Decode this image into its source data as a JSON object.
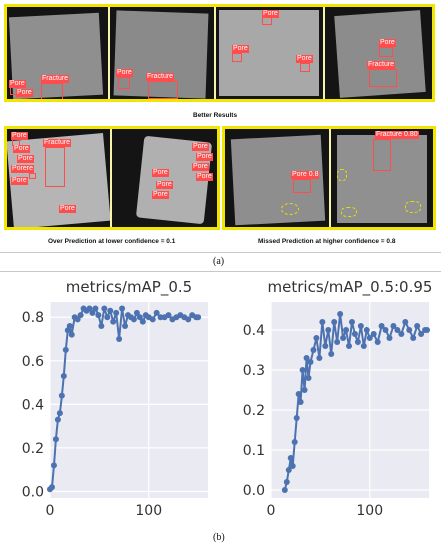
{
  "figure": {
    "panel_a": {
      "top_caption": "Better Results",
      "bottom_left_caption": "Over Prediction at lower confidence = 0.1",
      "bottom_right_caption": "Missed Prediction at higher confidence = 0.8",
      "label": "(a)",
      "detections": {
        "t1": [
          "Pore",
          "Pore",
          "Fracture"
        ],
        "t2": [
          "Pore",
          "Fracture"
        ],
        "t3": [
          "Pore",
          "Pore",
          "Pore"
        ],
        "t4": [
          "Pore",
          "Fracture"
        ],
        "t5": [
          "Pore",
          "Fracture",
          "Pore",
          "Pore",
          "Porere",
          "Pore",
          "Pore"
        ],
        "t6": [
          "Pore",
          "Pore",
          "Pore",
          "Pore",
          "Pore",
          "Pore",
          "Pore"
        ],
        "t7": [
          "Pore 0.8"
        ],
        "t8": [
          "Fracture 0.80"
        ]
      }
    },
    "panel_b": {
      "label": "(b)"
    }
  },
  "chart_data": [
    {
      "type": "line",
      "title": "metrics/mAP_0.5",
      "xlim": [
        0,
        160
      ],
      "ylim": [
        -0.03,
        0.87
      ],
      "xticks": [
        0,
        100
      ],
      "yticks": [
        0.0,
        0.2,
        0.4,
        0.6,
        0.8
      ],
      "xtick_labels": [
        "0",
        "100"
      ],
      "ytick_labels": [
        "0.0",
        "0.2",
        "0.4",
        "0.6",
        "0.8"
      ],
      "grid": true,
      "color": "#4c72b0",
      "x": [
        0,
        2,
        4,
        6,
        8,
        10,
        12,
        14,
        16,
        18,
        20,
        22,
        25,
        28,
        31,
        34,
        37,
        40,
        43,
        46,
        49,
        52,
        55,
        58,
        61,
        64,
        67,
        70,
        73,
        76,
        79,
        82,
        85,
        88,
        91,
        94,
        97,
        100,
        104,
        108,
        112,
        116,
        120,
        124,
        128,
        132,
        136,
        140,
        144,
        148,
        150
      ],
      "y": [
        0.01,
        0.02,
        0.12,
        0.24,
        0.33,
        0.36,
        0.44,
        0.53,
        0.65,
        0.74,
        0.76,
        0.72,
        0.8,
        0.79,
        0.81,
        0.84,
        0.83,
        0.84,
        0.82,
        0.84,
        0.81,
        0.76,
        0.84,
        0.8,
        0.83,
        0.78,
        0.82,
        0.7,
        0.84,
        0.76,
        0.81,
        0.8,
        0.79,
        0.82,
        0.8,
        0.78,
        0.81,
        0.8,
        0.79,
        0.82,
        0.8,
        0.8,
        0.81,
        0.79,
        0.8,
        0.81,
        0.8,
        0.79,
        0.81,
        0.8,
        0.8
      ]
    },
    {
      "type": "line",
      "title": "metrics/mAP_0.5:0.95",
      "xlim": [
        0,
        160
      ],
      "ylim": [
        -0.02,
        0.47
      ],
      "xticks": [
        0,
        100
      ],
      "yticks": [
        0.0,
        0.1,
        0.2,
        0.3,
        0.4
      ],
      "xtick_labels": [
        "0",
        "100"
      ],
      "ytick_labels": [
        "0.0",
        "0.1",
        "0.2",
        "0.3",
        "0.4"
      ],
      "grid": true,
      "color": "#4c72b0",
      "x": [
        14,
        16,
        18,
        20,
        22,
        24,
        26,
        28,
        30,
        32,
        34,
        36,
        38,
        40,
        43,
        46,
        49,
        52,
        55,
        58,
        61,
        64,
        67,
        70,
        73,
        76,
        79,
        82,
        85,
        88,
        91,
        94,
        97,
        100,
        104,
        108,
        112,
        116,
        120,
        124,
        128,
        132,
        136,
        140,
        144,
        148,
        152,
        156,
        158
      ],
      "y": [
        0.0,
        0.02,
        0.05,
        0.08,
        0.06,
        0.12,
        0.18,
        0.24,
        0.22,
        0.3,
        0.25,
        0.33,
        0.28,
        0.32,
        0.35,
        0.38,
        0.33,
        0.42,
        0.36,
        0.4,
        0.34,
        0.42,
        0.37,
        0.44,
        0.38,
        0.4,
        0.36,
        0.42,
        0.39,
        0.37,
        0.41,
        0.36,
        0.4,
        0.38,
        0.39,
        0.37,
        0.41,
        0.4,
        0.38,
        0.41,
        0.4,
        0.39,
        0.42,
        0.4,
        0.38,
        0.41,
        0.39,
        0.4,
        0.4
      ]
    }
  ]
}
